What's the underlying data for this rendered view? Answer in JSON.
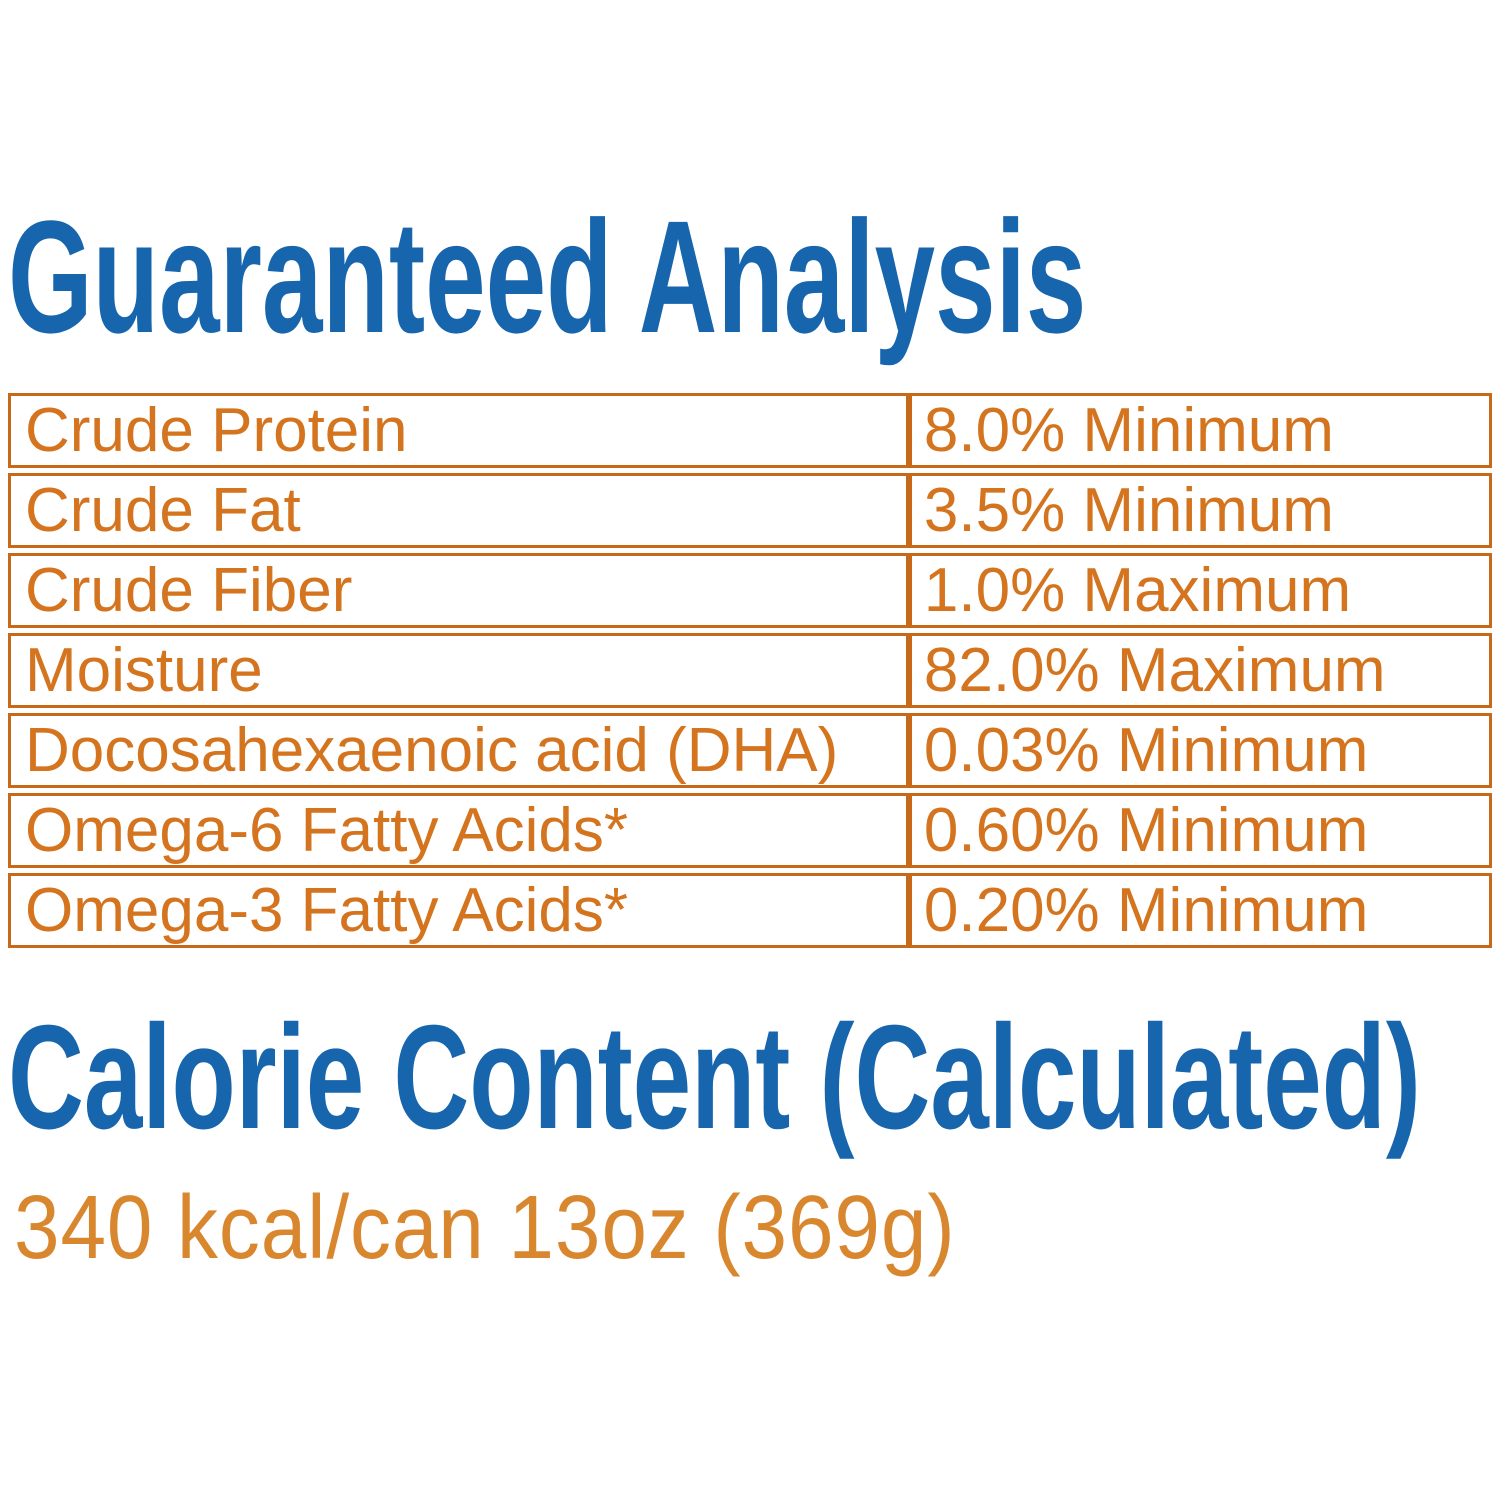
{
  "label": {
    "guaranteed_analysis": {
      "title": "Guaranteed Analysis",
      "table": {
        "rows": [
          {
            "nutrient": "Crude Protein",
            "value": "8.0% Minimum"
          },
          {
            "nutrient": "Crude Fat",
            "value": "3.5% Minimum"
          },
          {
            "nutrient": "Crude Fiber",
            "value": "1.0% Maximum"
          },
          {
            "nutrient": "Moisture",
            "value": "82.0% Maximum"
          },
          {
            "nutrient": "Docosahexaenoic acid (DHA)",
            "value": "0.03% Minimum"
          },
          {
            "nutrient": "Omega-6 Fatty Acids*",
            "value": "0.60% Minimum"
          },
          {
            "nutrient": "Omega-3 Fatty Acids*",
            "value": "0.20% Minimum"
          }
        ]
      }
    },
    "calorie_content": {
      "title": "Calorie Content (Calculated)",
      "value": "340 kcal/can 13oz (369g)"
    },
    "colors": {
      "heading_blue": "#1766ad",
      "table_text_orange": "#d4741e",
      "table_border_orange": "#c8691a",
      "calorie_text_orange": "#d9872e",
      "background": "#ffffff"
    }
  }
}
